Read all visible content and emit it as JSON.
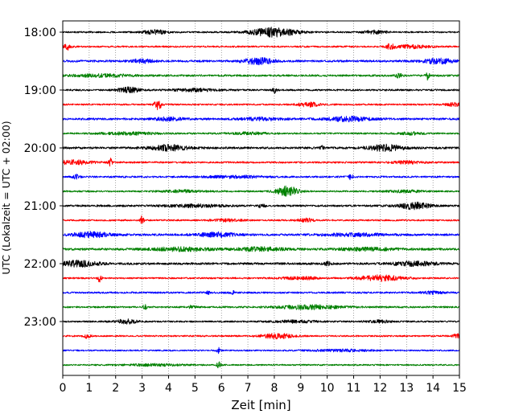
{
  "chart_data": {
    "type": "line",
    "chart_kind": "helicorder (seismogram drum plot)",
    "title": "",
    "xlabel": "Zeit  [min]",
    "ylabel": "UTC (Lokalzeit = UTC + 02:00)",
    "xlim": [
      0,
      15
    ],
    "xticks": [
      "0",
      "1",
      "2",
      "3",
      "4",
      "5",
      "6",
      "7",
      "8",
      "9",
      "10",
      "11",
      "12",
      "13",
      "14",
      "15"
    ],
    "yticks": [
      "18:00",
      "19:00",
      "20:00",
      "21:00",
      "22:00",
      "23:00"
    ],
    "grid": "vertical dotted lines at each minute",
    "trace_colors": [
      "#000000",
      "#ff0000",
      "#0000ff",
      "#008000"
    ],
    "traces": [
      {
        "start": "18:00",
        "color": "#000000",
        "noise": 1.0,
        "bursts": [
          [
            3.5,
            0.3,
            2.5
          ],
          [
            8.0,
            0.6,
            5.5
          ],
          [
            11.8,
            0.3,
            2.0
          ]
        ]
      },
      {
        "start": "18:15",
        "color": "#ff0000",
        "noise": 1.0,
        "bursts": [
          [
            0.2,
            0.1,
            4.0
          ],
          [
            12.4,
            0.1,
            3.5
          ],
          [
            13.2,
            0.5,
            1.8
          ]
        ]
      },
      {
        "start": "18:30",
        "color": "#0000ff",
        "noise": 1.3,
        "bursts": [
          [
            3.0,
            0.3,
            2.0
          ],
          [
            7.4,
            0.4,
            4.0
          ],
          [
            14.2,
            0.4,
            3.0
          ]
        ]
      },
      {
        "start": "18:45",
        "color": "#008000",
        "noise": 1.2,
        "bursts": [
          [
            1.5,
            0.8,
            1.5
          ],
          [
            12.7,
            0.1,
            2.5
          ],
          [
            13.8,
            0.05,
            5.0
          ]
        ]
      },
      {
        "start": "19:00",
        "color": "#000000",
        "noise": 1.1,
        "bursts": [
          [
            2.5,
            0.3,
            3.0
          ],
          [
            8.0,
            0.05,
            4.0
          ],
          [
            5.0,
            0.6,
            1.5
          ]
        ]
      },
      {
        "start": "19:15",
        "color": "#ff0000",
        "noise": 1.0,
        "bursts": [
          [
            3.6,
            0.1,
            6.0
          ],
          [
            9.3,
            0.3,
            2.5
          ],
          [
            14.8,
            0.2,
            2.0
          ]
        ]
      },
      {
        "start": "19:30",
        "color": "#0000ff",
        "noise": 1.3,
        "bursts": [
          [
            4.0,
            0.4,
            1.8
          ],
          [
            10.8,
            0.6,
            2.5
          ],
          [
            7.5,
            0.5,
            1.5
          ]
        ]
      },
      {
        "start": "19:45",
        "color": "#008000",
        "noise": 1.0,
        "bursts": [
          [
            2.5,
            0.8,
            1.5
          ],
          [
            7.0,
            0.5,
            1.3
          ],
          [
            13.2,
            0.3,
            1.6
          ]
        ]
      },
      {
        "start": "20:00",
        "color": "#000000",
        "noise": 1.3,
        "bursts": [
          [
            4.0,
            0.5,
            3.5
          ],
          [
            12.2,
            0.5,
            3.5
          ],
          [
            9.8,
            0.05,
            2.5
          ]
        ]
      },
      {
        "start": "20:15",
        "color": "#ff0000",
        "noise": 1.1,
        "bursts": [
          [
            0.4,
            0.5,
            2.5
          ],
          [
            1.8,
            0.05,
            4.5
          ],
          [
            13.0,
            0.4,
            1.5
          ]
        ]
      },
      {
        "start": "20:30",
        "color": "#0000ff",
        "noise": 1.1,
        "bursts": [
          [
            0.5,
            0.1,
            2.5
          ],
          [
            10.9,
            0.05,
            5.0
          ],
          [
            6.5,
            0.8,
            1.4
          ]
        ]
      },
      {
        "start": "20:45",
        "color": "#008000",
        "noise": 1.0,
        "bursts": [
          [
            8.5,
            0.3,
            6.0
          ],
          [
            4.5,
            0.6,
            1.4
          ],
          [
            13.0,
            0.5,
            1.3
          ]
        ]
      },
      {
        "start": "21:00",
        "color": "#000000",
        "noise": 1.2,
        "bursts": [
          [
            13.3,
            0.4,
            4.0
          ],
          [
            5.0,
            0.8,
            1.5
          ],
          [
            7.5,
            0.1,
            2.0
          ]
        ]
      },
      {
        "start": "21:15",
        "color": "#ff0000",
        "noise": 1.0,
        "bursts": [
          [
            3.0,
            0.05,
            5.5
          ],
          [
            9.2,
            0.2,
            2.5
          ],
          [
            6.2,
            0.4,
            1.4
          ]
        ]
      },
      {
        "start": "21:30",
        "color": "#0000ff",
        "noise": 1.3,
        "bursts": [
          [
            1.1,
            0.5,
            3.0
          ],
          [
            5.8,
            0.5,
            2.5
          ],
          [
            11.0,
            0.8,
            1.5
          ]
        ]
      },
      {
        "start": "21:45",
        "color": "#008000",
        "noise": 1.4,
        "bursts": [
          [
            4.5,
            0.8,
            2.0
          ],
          [
            7.5,
            0.6,
            2.0
          ],
          [
            11.5,
            0.8,
            1.5
          ]
        ]
      },
      {
        "start": "22:00",
        "color": "#000000",
        "noise": 1.3,
        "bursts": [
          [
            0.6,
            0.5,
            3.5
          ],
          [
            13.3,
            0.6,
            2.5
          ],
          [
            10.0,
            0.1,
            2.2
          ]
        ]
      },
      {
        "start": "22:15",
        "color": "#ff0000",
        "noise": 1.0,
        "bursts": [
          [
            1.4,
            0.05,
            5.0
          ],
          [
            12.0,
            0.6,
            3.5
          ],
          [
            9.0,
            0.5,
            1.6
          ]
        ]
      },
      {
        "start": "22:30",
        "color": "#0000ff",
        "noise": 1.1,
        "bursts": [
          [
            6.4,
            0.05,
            4.0
          ],
          [
            5.5,
            0.05,
            2.5
          ],
          [
            14.0,
            0.3,
            1.5
          ]
        ]
      },
      {
        "start": "22:45",
        "color": "#008000",
        "noise": 1.1,
        "bursts": [
          [
            9.3,
            0.8,
            2.5
          ],
          [
            3.1,
            0.05,
            3.0
          ],
          [
            4.9,
            0.1,
            2.0
          ]
        ]
      },
      {
        "start": "23:00",
        "color": "#000000",
        "noise": 1.0,
        "bursts": [
          [
            2.4,
            0.3,
            2.5
          ],
          [
            12.0,
            0.3,
            1.5
          ],
          [
            8.8,
            0.6,
            1.3
          ]
        ]
      },
      {
        "start": "23:15",
        "color": "#ff0000",
        "noise": 1.0,
        "bursts": [
          [
            8.1,
            0.4,
            3.0
          ],
          [
            0.9,
            0.1,
            2.5
          ],
          [
            14.9,
            0.1,
            3.0
          ]
        ]
      },
      {
        "start": "23:30",
        "color": "#0000ff",
        "noise": 0.9,
        "bursts": [
          [
            5.9,
            0.05,
            4.0
          ],
          [
            10.5,
            0.8,
            1.2
          ]
        ]
      },
      {
        "start": "23:45",
        "color": "#008000",
        "noise": 0.9,
        "bursts": [
          [
            5.9,
            0.05,
            4.5
          ],
          [
            3.5,
            0.8,
            1.2
          ]
        ]
      }
    ]
  }
}
